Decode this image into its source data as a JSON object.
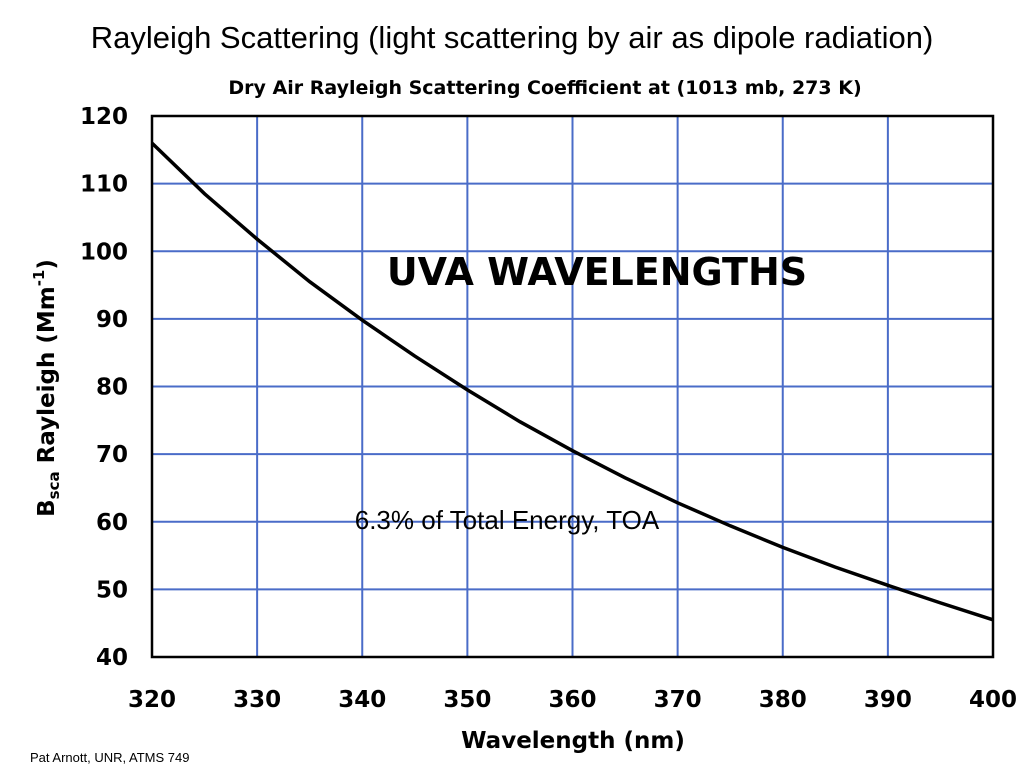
{
  "slide": {
    "title": "Rayleigh Scattering (light scattering by air as dipole radiation)",
    "footer": "Pat Arnott, UNR, ATMS 749"
  },
  "chart_data": {
    "type": "line",
    "title": "Dry Air Rayleigh Scattering Coefficient at (1013 mb, 273 K)",
    "xlabel": "Wavelength (nm)",
    "ylabel": "Bsca Rayleigh (Mm-1)",
    "ylabel_parts": {
      "main": "B",
      "sub": "sca",
      "rest": " Rayleigh (Mm",
      "sup": "-1",
      "close": ")"
    },
    "xlim": [
      320,
      400
    ],
    "ylim": [
      40,
      120
    ],
    "x_ticks": [
      320,
      330,
      340,
      350,
      360,
      370,
      380,
      390,
      400
    ],
    "y_ticks": [
      40,
      50,
      60,
      70,
      80,
      90,
      100,
      110,
      120
    ],
    "grid": true,
    "grid_color": "#4a6cc8",
    "line_color": "#000000",
    "annotations": [
      "UVA WAVELENGTHS",
      "6.3% of Total Energy, TOA"
    ],
    "series": [
      {
        "x": [
          320,
          325,
          330,
          335,
          340,
          345,
          350,
          355,
          360,
          365,
          370,
          375,
          380,
          385,
          390,
          395,
          400
        ],
        "values": [
          116,
          108.5,
          101.8,
          95.5,
          89.8,
          84.5,
          79.5,
          74.8,
          70.5,
          66.5,
          62.8,
          59.4,
          56.2,
          53.3,
          50.6,
          48,
          45.5
        ]
      }
    ]
  }
}
